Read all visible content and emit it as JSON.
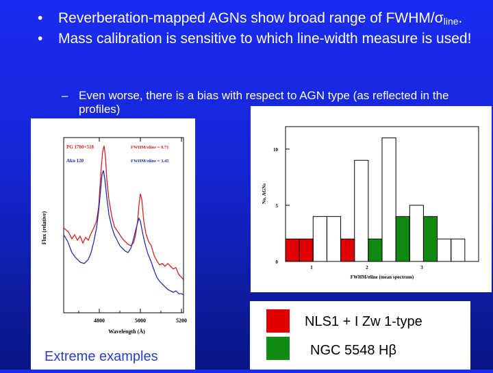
{
  "bullets": [
    {
      "marker": "•",
      "text_main": "Reverberation-mapped AGNs show broad range of FWHM/σ",
      "text_sub": "line",
      "text_end": "."
    },
    {
      "marker": "•",
      "text": "Mass calibration is sensitive to which line-width measure is used!"
    }
  ],
  "sub_bullet": {
    "marker": "–",
    "text": "Even worse, there is a bias with respect to AGN type (as reflected in the profiles)"
  },
  "left_panel": {
    "ylabel": "Flux (relative)",
    "xlabel": "Wavelength (Å)",
    "xticks": [
      "4800",
      "5000",
      "5200"
    ],
    "series": [
      {
        "name": "PG 1700+518",
        "color": "#d42020",
        "annotation": "FWHM/σline = 0.71"
      },
      {
        "name": "Akn 120",
        "color": "#2030b0",
        "annotation": "FWHM/σline = 3.45"
      }
    ],
    "caption": "Extreme examples"
  },
  "chart_data": {
    "type": "bar",
    "xlabel": "FWHM/σline (mean spectrum)",
    "ylabel": "No. AGNs",
    "xlim": [
      0.6,
      3.4
    ],
    "ylim": [
      0,
      12
    ],
    "xticks": [
      "1",
      "2",
      "3"
    ],
    "yticks": [
      "0",
      "5",
      "10"
    ],
    "bin_width": 0.2,
    "bin_starts": [
      0.6,
      0.8,
      1.0,
      1.2,
      1.4,
      1.6,
      1.8,
      2.0,
      2.2,
      2.4,
      2.6,
      2.8,
      3.0,
      3.2
    ],
    "series": [
      {
        "name": "NLS1 + I Zw 1-type",
        "color": "#e00000",
        "values": [
          2,
          2,
          0,
          0,
          2,
          0,
          0,
          0,
          0,
          0,
          0,
          0,
          0,
          0
        ]
      },
      {
        "name": "NGC 5548 Hβ",
        "color": "#108a10",
        "values": [
          0,
          0,
          0,
          0,
          0,
          0,
          2,
          0,
          4,
          0,
          4,
          0,
          0,
          0
        ]
      },
      {
        "name": "total",
        "color": "#000000",
        "values": [
          2,
          2,
          4,
          4,
          2,
          9,
          2,
          11,
          4,
          5,
          4,
          2,
          2,
          0
        ]
      }
    ]
  },
  "legend": {
    "items": [
      {
        "label": "NLS1 + I Zw 1-type",
        "color": "#e00000"
      },
      {
        "label": "NGC 5548 Hβ",
        "color": "#108a10"
      }
    ]
  }
}
